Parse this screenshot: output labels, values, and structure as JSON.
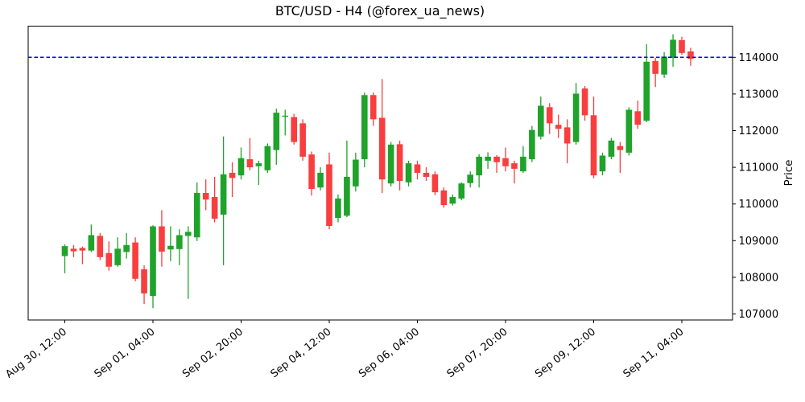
{
  "chart_data": {
    "type": "candlestick",
    "title": "BTC/USD - H4 (@forex_ua_news)",
    "ylabel": "Price",
    "instrument": "BTC/USD",
    "timeframe": "H4",
    "x_tick_labels": [
      "Aug 30, 12:00",
      "Sep 01, 04:00",
      "Sep 02, 20:00",
      "Sep 04, 12:00",
      "Sep 06, 04:00",
      "Sep 07, 20:00",
      "Sep 09, 12:00",
      "Sep 11, 04:00"
    ],
    "x_tick_indices": [
      0,
      10,
      20,
      30,
      40,
      50,
      60,
      70
    ],
    "y_ticks": [
      107000,
      108000,
      109000,
      110000,
      111000,
      112000,
      113000,
      114000
    ],
    "ylim": [
      106836,
      114851
    ],
    "grid": false,
    "legend": null,
    "hline": {
      "value": 114000,
      "color": "#0000ff",
      "style": "dashed"
    },
    "up_color": "#1fa32a",
    "down_color": "#f83e3e",
    "candles_format": [
      "open",
      "high",
      "low",
      "close"
    ],
    "candles": [
      [
        108580,
        108900,
        108110,
        108850
      ],
      [
        108780,
        108880,
        108550,
        108710
      ],
      [
        108800,
        108840,
        108360,
        108730
      ],
      [
        108730,
        109440,
        108690,
        109150
      ],
      [
        109130,
        109210,
        108470,
        108550
      ],
      [
        108660,
        108980,
        108180,
        108290
      ],
      [
        108330,
        109090,
        108290,
        108780
      ],
      [
        108690,
        109210,
        108510,
        108880
      ],
      [
        108950,
        109090,
        107890,
        107960
      ],
      [
        108220,
        108330,
        107270,
        107560
      ],
      [
        107490,
        109420,
        107160,
        109390
      ],
      [
        109390,
        109830,
        108290,
        108700
      ],
      [
        108760,
        109390,
        108440,
        108860
      ],
      [
        108770,
        109310,
        108330,
        109150
      ],
      [
        109130,
        109390,
        107410,
        109240
      ],
      [
        109090,
        110590,
        108990,
        110300
      ],
      [
        110300,
        110670,
        109830,
        110120
      ],
      [
        110190,
        110740,
        109500,
        109600
      ],
      [
        109710,
        111840,
        108330,
        110810
      ],
      [
        110850,
        111140,
        110190,
        110710
      ],
      [
        110780,
        111540,
        110670,
        111250
      ],
      [
        111220,
        111800,
        110920,
        111000
      ],
      [
        111030,
        111180,
        110520,
        111110
      ],
      [
        110920,
        111650,
        110850,
        111580
      ],
      [
        111470,
        112600,
        111070,
        112490
      ],
      [
        112380,
        112570,
        111870,
        112410
      ],
      [
        112370,
        112460,
        111620,
        111690
      ],
      [
        112200,
        112310,
        111180,
        111290
      ],
      [
        111350,
        111430,
        110230,
        110410
      ],
      [
        110450,
        111000,
        110370,
        110850
      ],
      [
        111080,
        111400,
        109310,
        109400
      ],
      [
        109620,
        110260,
        109500,
        110150
      ],
      [
        109680,
        111730,
        109640,
        110740
      ],
      [
        110480,
        111400,
        110340,
        111210
      ],
      [
        111220,
        113040,
        111000,
        112970
      ],
      [
        112970,
        113040,
        112130,
        112310
      ],
      [
        112350,
        113410,
        110300,
        110670
      ],
      [
        110560,
        111690,
        110480,
        111620
      ],
      [
        111630,
        111730,
        110370,
        110630
      ],
      [
        110590,
        111180,
        110480,
        111110
      ],
      [
        111080,
        111180,
        110670,
        110850
      ],
      [
        110850,
        111000,
        110630,
        110740
      ],
      [
        110810,
        110890,
        110240,
        110320
      ],
      [
        110370,
        110450,
        109900,
        109970
      ],
      [
        110010,
        110260,
        109960,
        110190
      ],
      [
        110150,
        110590,
        110100,
        110560
      ],
      [
        110570,
        110890,
        110450,
        110800
      ],
      [
        110780,
        111360,
        110450,
        111290
      ],
      [
        111180,
        111410,
        110960,
        111290
      ],
      [
        111290,
        111330,
        110850,
        111140
      ],
      [
        111250,
        111540,
        110890,
        111030
      ],
      [
        111110,
        111180,
        110560,
        110960
      ],
      [
        110890,
        111580,
        110850,
        111290
      ],
      [
        111220,
        112130,
        111140,
        112020
      ],
      [
        111840,
        112930,
        111760,
        112680
      ],
      [
        112640,
        112750,
        111910,
        112200
      ],
      [
        112160,
        112440,
        111800,
        112050
      ],
      [
        112090,
        112310,
        111110,
        111650
      ],
      [
        111690,
        113300,
        111620,
        113010
      ],
      [
        113150,
        113220,
        112270,
        112420
      ],
      [
        112420,
        112930,
        110700,
        110780
      ],
      [
        110890,
        111400,
        110780,
        111320
      ],
      [
        111290,
        111800,
        111220,
        111730
      ],
      [
        111580,
        111690,
        110850,
        111470
      ],
      [
        111400,
        112640,
        111320,
        112570
      ],
      [
        112530,
        112820,
        112050,
        112160
      ],
      [
        112270,
        114360,
        112230,
        113880
      ],
      [
        113900,
        113990,
        113190,
        113550
      ],
      [
        113530,
        114140,
        113440,
        114020
      ],
      [
        113990,
        114630,
        113740,
        114480
      ],
      [
        114470,
        114560,
        114070,
        114120
      ],
      [
        114160,
        114260,
        113770,
        113960
      ]
    ]
  }
}
